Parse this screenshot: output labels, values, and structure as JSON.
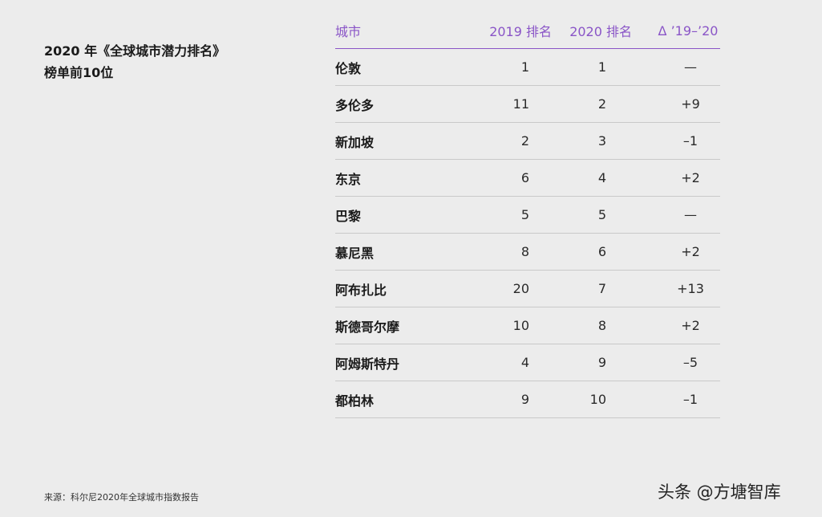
{
  "title": {
    "line1": "2020 年《全球城市潜力排名》",
    "line2": "榜单前10位"
  },
  "table": {
    "headers": [
      "城市",
      "2019 排名",
      "2020 排名",
      "Δ ’19–’20"
    ],
    "rows": [
      {
        "city": "伦敦",
        "r2019": "1",
        "r2020": "1",
        "delta": "—"
      },
      {
        "city": "多伦多",
        "r2019": "11",
        "r2020": "2",
        "delta": "+9"
      },
      {
        "city": "新加坡",
        "r2019": "2",
        "r2020": "3",
        "delta": "–1"
      },
      {
        "city": "东京",
        "r2019": "6",
        "r2020": "4",
        "delta": "+2"
      },
      {
        "city": "巴黎",
        "r2019": "5",
        "r2020": "5",
        "delta": "—"
      },
      {
        "city": "慕尼黑",
        "r2019": "8",
        "r2020": "6",
        "delta": "+2"
      },
      {
        "city": "阿布扎比",
        "r2019": "20",
        "r2020": "7",
        "delta": "+13"
      },
      {
        "city": "斯德哥尔摩",
        "r2019": "10",
        "r2020": "8",
        "delta": "+2"
      },
      {
        "city": "阿姆斯特丹",
        "r2019": "4",
        "r2020": "9",
        "delta": "–5"
      },
      {
        "city": "都柏林",
        "r2019": "9",
        "r2020": "10",
        "delta": "–1"
      }
    ]
  },
  "source": "来源：科尔尼2020年全球城市指数报告",
  "watermark": "头条 @方塘智库",
  "colors": {
    "accent": "#8a55c7",
    "background": "#ececec"
  }
}
